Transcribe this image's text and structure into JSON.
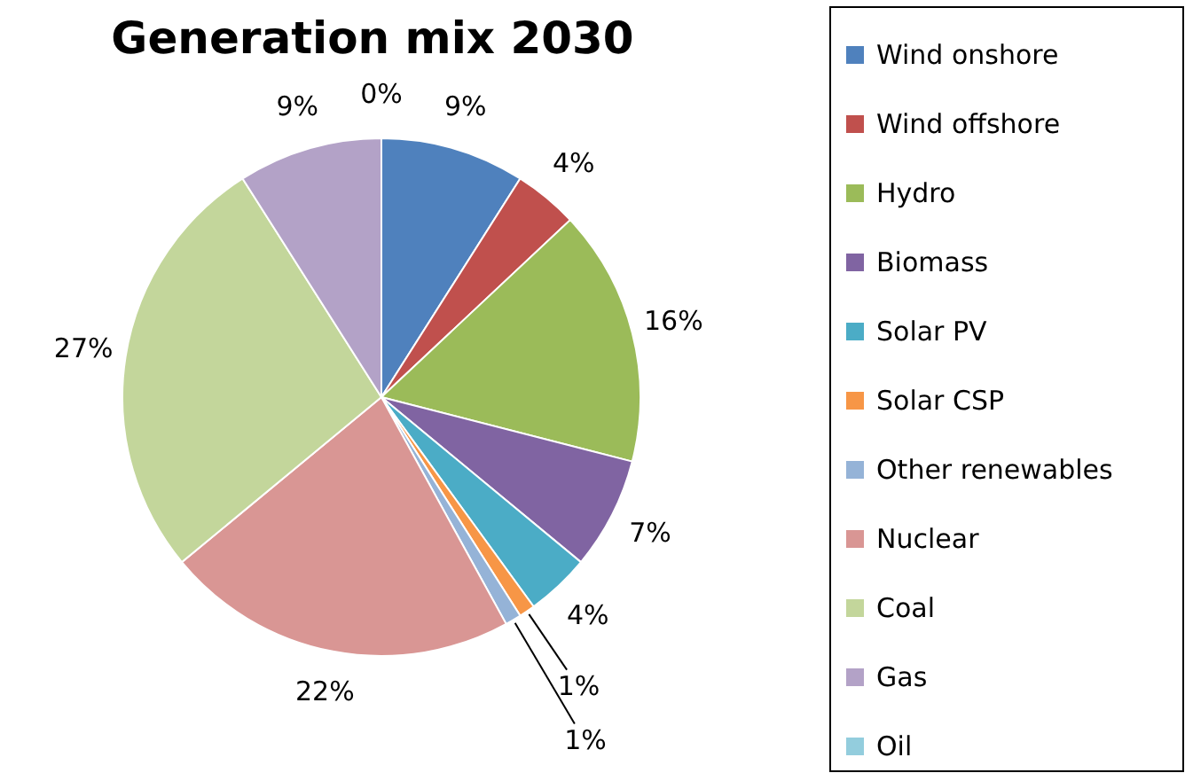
{
  "chart_data": {
    "type": "pie",
    "title": "Generation mix 2030",
    "categories": [
      "Wind onshore",
      "Wind offshore",
      "Hydro",
      "Biomass",
      "Solar PV",
      "Solar CSP",
      "Other renewables",
      "Nuclear",
      "Coal",
      "Gas",
      "Oil"
    ],
    "values": [
      9,
      4,
      16,
      7,
      4,
      1,
      1,
      22,
      27,
      9,
      0
    ],
    "colors": [
      "#4f81bd",
      "#c0504d",
      "#9bbb59",
      "#8064a2",
      "#4bacc6",
      "#f79646",
      "#95b3d7",
      "#d99694",
      "#c3d69b",
      "#b3a2c7",
      "#93cddd"
    ],
    "value_labels": [
      "9%",
      "4%",
      "16%",
      "7%",
      "4%",
      "1%",
      "1%",
      "22%",
      "27%",
      "9%",
      "0%"
    ],
    "legend": "right"
  }
}
